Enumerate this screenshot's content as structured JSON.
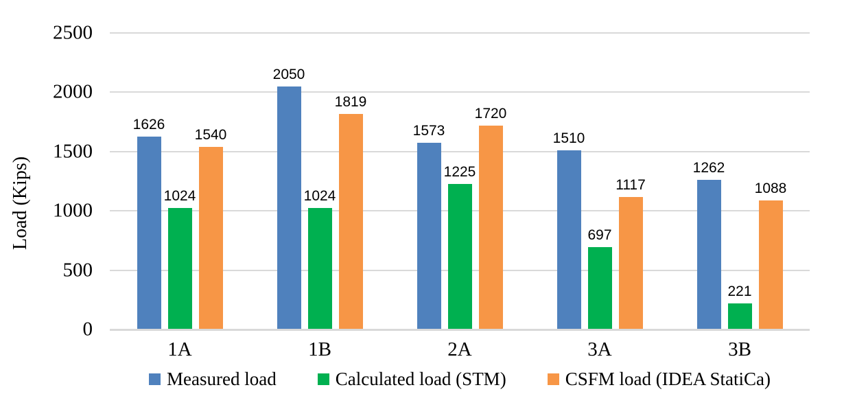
{
  "chart_data": {
    "type": "bar",
    "title": "",
    "ylabel": "Load (Kips)",
    "categories": [
      "1A",
      "1B",
      "2A",
      "3A",
      "3B"
    ],
    "series": [
      {
        "name": "Measured load",
        "color": "#4F81BD",
        "values": [
          1626,
          2050,
          1573,
          1510,
          1262
        ]
      },
      {
        "name": "Calculated load (STM)",
        "color": "#00B050",
        "values": [
          1024,
          1024,
          1225,
          697,
          221
        ]
      },
      {
        "name": "CSFM load (IDEA StatiCa)",
        "color": "#F79646",
        "values": [
          1540,
          1819,
          1720,
          1117,
          1088
        ]
      }
    ],
    "ylim": [
      0,
      2500
    ],
    "y_ticks": [
      0,
      500,
      1000,
      1500,
      2000,
      2500
    ],
    "grid": true,
    "gridline_color": "#D9D9D9",
    "axis_line_color": "#D9D9D9",
    "legend_position": "bottom",
    "data_labels": true
  }
}
